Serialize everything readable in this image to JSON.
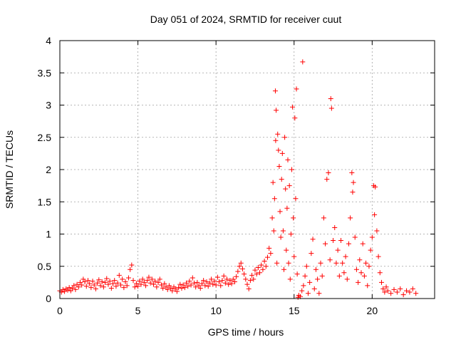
{
  "chart_data": {
    "type": "scatter",
    "title": "Day 051 of 2024, SRMTID for receiver cuut",
    "xlabel": "GPS time / hours",
    "ylabel": "SRMTID / TECUs",
    "xlim": [
      0,
      24
    ],
    "ylim": [
      0,
      4
    ],
    "grid": true,
    "marker": "plus",
    "color": "#ff0000",
    "x_ticks": [
      {
        "value": 0,
        "label": "0"
      },
      {
        "value": 5,
        "label": "5"
      },
      {
        "value": 10,
        "label": "10"
      },
      {
        "value": 15,
        "label": "15"
      },
      {
        "value": 20,
        "label": "20"
      }
    ],
    "y_ticks": [
      {
        "value": 0,
        "label": "0"
      },
      {
        "value": 0.5,
        "label": "0.5"
      },
      {
        "value": 1,
        "label": "1"
      },
      {
        "value": 1.5,
        "label": "1.5"
      },
      {
        "value": 2,
        "label": "2"
      },
      {
        "value": 2.5,
        "label": "2.5"
      },
      {
        "value": 3,
        "label": "3"
      },
      {
        "value": 3.5,
        "label": "3.5"
      },
      {
        "value": 4,
        "label": "4"
      }
    ],
    "series": [
      {
        "name": "SRMTID",
        "points": [
          [
            0.0,
            0.12
          ],
          [
            0.1,
            0.1
          ],
          [
            0.2,
            0.14
          ],
          [
            0.3,
            0.11
          ],
          [
            0.4,
            0.15
          ],
          [
            0.5,
            0.13
          ],
          [
            0.6,
            0.17
          ],
          [
            0.7,
            0.12
          ],
          [
            0.8,
            0.16
          ],
          [
            0.9,
            0.2
          ],
          [
            1.0,
            0.14
          ],
          [
            1.1,
            0.22
          ],
          [
            1.2,
            0.18
          ],
          [
            1.3,
            0.25
          ],
          [
            1.4,
            0.21
          ],
          [
            1.5,
            0.3
          ],
          [
            1.6,
            0.26
          ],
          [
            1.7,
            0.19
          ],
          [
            1.8,
            0.28
          ],
          [
            1.9,
            0.23
          ],
          [
            2.0,
            0.17
          ],
          [
            2.1,
            0.27
          ],
          [
            2.2,
            0.21
          ],
          [
            2.3,
            0.15
          ],
          [
            2.4,
            0.24
          ],
          [
            2.5,
            0.29
          ],
          [
            2.6,
            0.2
          ],
          [
            2.7,
            0.26
          ],
          [
            2.8,
            0.18
          ],
          [
            2.9,
            0.25
          ],
          [
            3.0,
            0.31
          ],
          [
            3.1,
            0.22
          ],
          [
            3.2,
            0.27
          ],
          [
            3.3,
            0.16
          ],
          [
            3.4,
            0.23
          ],
          [
            3.5,
            0.28
          ],
          [
            3.6,
            0.19
          ],
          [
            3.7,
            0.24
          ],
          [
            3.8,
            0.36
          ],
          [
            3.9,
            0.21
          ],
          [
            4.0,
            0.3
          ],
          [
            4.1,
            0.17
          ],
          [
            4.2,
            0.26
          ],
          [
            4.3,
            0.2
          ],
          [
            4.4,
            0.32
          ],
          [
            4.5,
            0.45
          ],
          [
            4.6,
            0.52
          ],
          [
            4.7,
            0.28
          ],
          [
            4.8,
            0.18
          ],
          [
            4.9,
            0.23
          ],
          [
            5.0,
            0.19
          ],
          [
            5.1,
            0.27
          ],
          [
            5.2,
            0.22
          ],
          [
            5.3,
            0.3
          ],
          [
            5.4,
            0.25
          ],
          [
            5.5,
            0.2
          ],
          [
            5.6,
            0.28
          ],
          [
            5.7,
            0.33
          ],
          [
            5.8,
            0.24
          ],
          [
            5.9,
            0.3
          ],
          [
            6.0,
            0.22
          ],
          [
            6.1,
            0.27
          ],
          [
            6.2,
            0.18
          ],
          [
            6.3,
            0.25
          ],
          [
            6.4,
            0.3
          ],
          [
            6.5,
            0.21
          ],
          [
            6.6,
            0.16
          ],
          [
            6.7,
            0.23
          ],
          [
            6.8,
            0.18
          ],
          [
            6.9,
            0.14
          ],
          [
            7.0,
            0.2
          ],
          [
            7.1,
            0.16
          ],
          [
            7.2,
            0.12
          ],
          [
            7.3,
            0.18
          ],
          [
            7.4,
            0.15
          ],
          [
            7.5,
            0.11
          ],
          [
            7.6,
            0.17
          ],
          [
            7.7,
            0.22
          ],
          [
            7.8,
            0.16
          ],
          [
            7.9,
            0.21
          ],
          [
            8.0,
            0.17
          ],
          [
            8.1,
            0.24
          ],
          [
            8.2,
            0.19
          ],
          [
            8.3,
            0.27
          ],
          [
            8.4,
            0.21
          ],
          [
            8.5,
            0.32
          ],
          [
            8.6,
            0.24
          ],
          [
            8.7,
            0.18
          ],
          [
            8.8,
            0.25
          ],
          [
            8.9,
            0.2
          ],
          [
            9.0,
            0.16
          ],
          [
            9.1,
            0.23
          ],
          [
            9.2,
            0.28
          ],
          [
            9.3,
            0.2
          ],
          [
            9.4,
            0.26
          ],
          [
            9.5,
            0.19
          ],
          [
            9.6,
            0.24
          ],
          [
            9.7,
            0.3
          ],
          [
            9.8,
            0.22
          ],
          [
            9.9,
            0.27
          ],
          [
            10.0,
            0.21
          ],
          [
            10.1,
            0.33
          ],
          [
            10.2,
            0.26
          ],
          [
            10.3,
            0.2
          ],
          [
            10.4,
            0.28
          ],
          [
            10.5,
            0.35
          ],
          [
            10.6,
            0.24
          ],
          [
            10.7,
            0.3
          ],
          [
            10.8,
            0.22
          ],
          [
            10.9,
            0.28
          ],
          [
            11.0,
            0.23
          ],
          [
            11.1,
            0.3
          ],
          [
            11.2,
            0.26
          ],
          [
            11.3,
            0.34
          ],
          [
            11.4,
            0.42
          ],
          [
            11.5,
            0.5
          ],
          [
            11.6,
            0.55
          ],
          [
            11.7,
            0.46
          ],
          [
            11.8,
            0.38
          ],
          [
            11.9,
            0.3
          ],
          [
            12.0,
            0.22
          ],
          [
            12.1,
            0.15
          ],
          [
            12.2,
            0.28
          ],
          [
            12.3,
            0.36
          ],
          [
            12.4,
            0.3
          ],
          [
            12.5,
            0.44
          ],
          [
            12.6,
            0.38
          ],
          [
            12.7,
            0.48
          ],
          [
            12.8,
            0.4
          ],
          [
            12.9,
            0.52
          ],
          [
            13.0,
            0.45
          ],
          [
            13.1,
            0.58
          ],
          [
            13.2,
            0.5
          ],
          [
            13.3,
            0.64
          ],
          [
            13.4,
            0.78
          ],
          [
            13.5,
            0.7
          ],
          [
            13.6,
            1.25
          ],
          [
            13.65,
            1.8
          ],
          [
            13.7,
            1.05
          ],
          [
            13.75,
            1.55
          ],
          [
            13.8,
            3.22
          ],
          [
            13.82,
            2.45
          ],
          [
            13.85,
            2.92
          ],
          [
            13.9,
            0.55
          ],
          [
            13.95,
            2.55
          ],
          [
            14.0,
            2.3
          ],
          [
            14.05,
            2.05
          ],
          [
            14.1,
            1.35
          ],
          [
            14.15,
            0.95
          ],
          [
            14.2,
            1.85
          ],
          [
            14.25,
            2.25
          ],
          [
            14.3,
            1.05
          ],
          [
            14.35,
            0.45
          ],
          [
            14.4,
            2.5
          ],
          [
            14.45,
            1.7
          ],
          [
            14.5,
            0.75
          ],
          [
            14.55,
            1.4
          ],
          [
            14.6,
            2.15
          ],
          [
            14.65,
            0.55
          ],
          [
            14.7,
            1.75
          ],
          [
            14.75,
            0.3
          ],
          [
            14.8,
            1.0
          ],
          [
            14.85,
            2.0
          ],
          [
            14.9,
            2.97
          ],
          [
            14.95,
            1.25
          ],
          [
            15.0,
            0.65
          ],
          [
            15.05,
            2.8
          ],
          [
            15.1,
            1.55
          ],
          [
            15.15,
            3.25
          ],
          [
            15.2,
            0.38
          ],
          [
            15.25,
            0.02
          ],
          [
            15.3,
            0.05
          ],
          [
            15.4,
            0.03
          ],
          [
            15.5,
            0.12
          ],
          [
            15.55,
            3.67
          ],
          [
            15.6,
            0.2
          ],
          [
            15.7,
            0.35
          ],
          [
            15.8,
            0.5
          ],
          [
            15.9,
            0.08
          ],
          [
            16.0,
            0.25
          ],
          [
            16.1,
            0.7
          ],
          [
            16.2,
            0.92
          ],
          [
            16.3,
            0.15
          ],
          [
            16.4,
            0.45
          ],
          [
            16.5,
            0.3
          ],
          [
            16.6,
            0.08
          ],
          [
            16.7,
            0.55
          ],
          [
            16.8,
            0.35
          ],
          [
            16.9,
            1.25
          ],
          [
            17.0,
            0.85
          ],
          [
            17.1,
            1.85
          ],
          [
            17.2,
            1.95
          ],
          [
            17.3,
            0.6
          ],
          [
            17.35,
            3.1
          ],
          [
            17.4,
            2.95
          ],
          [
            17.5,
            0.9
          ],
          [
            17.6,
            1.1
          ],
          [
            17.7,
            0.55
          ],
          [
            17.8,
            0.75
          ],
          [
            17.9,
            0.35
          ],
          [
            18.0,
            0.9
          ],
          [
            18.1,
            0.55
          ],
          [
            18.2,
            0.4
          ],
          [
            18.3,
            0.65
          ],
          [
            18.4,
            0.3
          ],
          [
            18.5,
            0.85
          ],
          [
            18.6,
            1.25
          ],
          [
            18.7,
            1.95
          ],
          [
            18.75,
            1.65
          ],
          [
            18.8,
            1.8
          ],
          [
            18.9,
            0.95
          ],
          [
            19.0,
            0.45
          ],
          [
            19.1,
            0.25
          ],
          [
            19.2,
            0.6
          ],
          [
            19.3,
            0.4
          ],
          [
            19.4,
            0.85
          ],
          [
            19.5,
            0.35
          ],
          [
            19.6,
            0.55
          ],
          [
            19.7,
            0.2
          ],
          [
            19.8,
            0.5
          ],
          [
            19.9,
            0.75
          ],
          [
            20.0,
            0.95
          ],
          [
            20.1,
            1.75
          ],
          [
            20.15,
            1.3
          ],
          [
            20.2,
            1.73
          ],
          [
            20.3,
            1.05
          ],
          [
            20.4,
            0.65
          ],
          [
            20.5,
            0.4
          ],
          [
            20.6,
            0.25
          ],
          [
            20.7,
            0.15
          ],
          [
            20.8,
            0.1
          ],
          [
            20.9,
            0.18
          ],
          [
            21.0,
            0.12
          ],
          [
            21.2,
            0.08
          ],
          [
            21.4,
            0.14
          ],
          [
            21.6,
            0.1
          ],
          [
            21.8,
            0.15
          ],
          [
            22.0,
            0.06
          ],
          [
            22.2,
            0.12
          ],
          [
            22.4,
            0.1
          ],
          [
            22.6,
            0.15
          ],
          [
            22.8,
            0.08
          ]
        ]
      }
    ]
  }
}
